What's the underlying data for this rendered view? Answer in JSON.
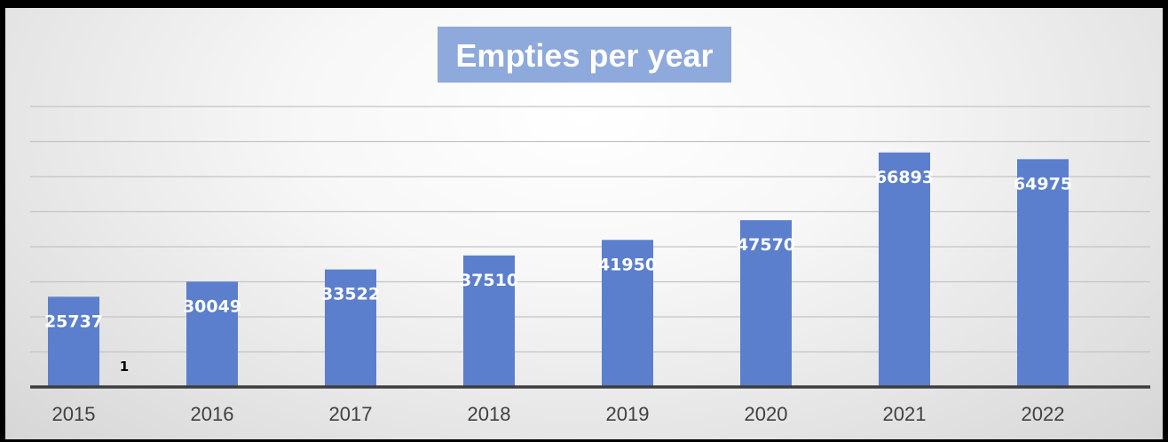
{
  "chart_data": {
    "type": "bar",
    "title": "Empties per year",
    "xlabel": "",
    "ylabel": "",
    "categories": [
      "2015",
      "2016",
      "2017",
      "2018",
      "2019",
      "2020",
      "2021",
      "2022"
    ],
    "values": [
      25737,
      30049,
      33522,
      37510,
      41950,
      47570,
      66893,
      64975
    ],
    "data_labels": [
      "25737",
      "30049",
      "33522",
      "37510",
      "41950",
      "47570",
      "66893",
      "64975"
    ],
    "ylim": [
      0,
      80000
    ],
    "grid": true,
    "legend": "none",
    "annotation": "1",
    "colors": {
      "bar": "#5b7fcc",
      "title_background": "#8ea9db",
      "label_text": "#ffffff"
    }
  }
}
